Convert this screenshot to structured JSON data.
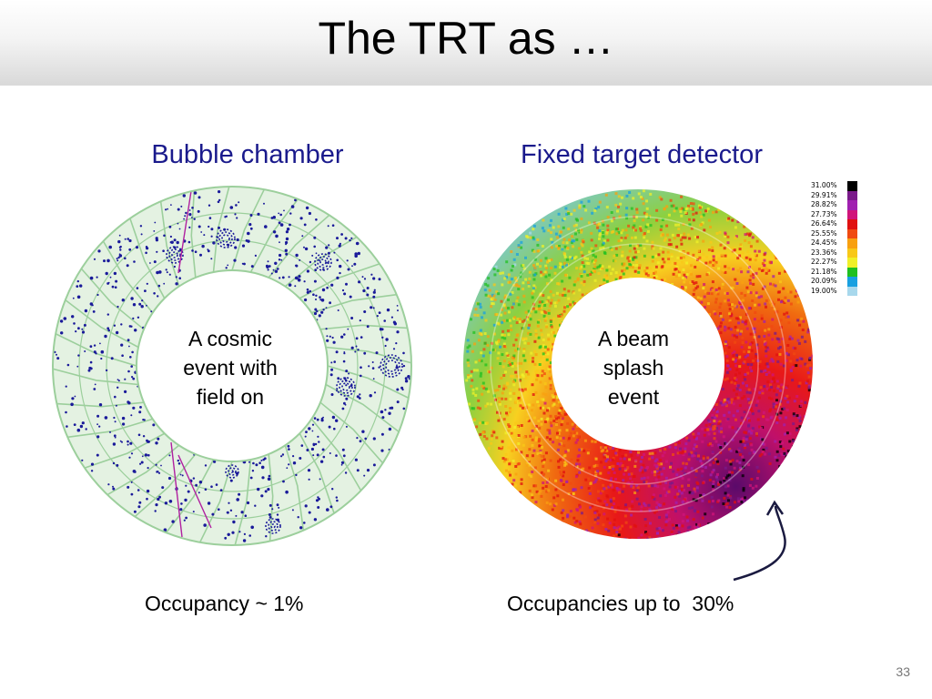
{
  "slide": {
    "title": "The TRT as …",
    "page_number": "33"
  },
  "left_panel": {
    "heading": "Bubble chamber",
    "center_label": "A cosmic\nevent with\nfield on",
    "caption": "Occupancy ~ 1%"
  },
  "right_panel": {
    "heading": "Fixed target detector",
    "center_label": "A beam\nsplash\nevent",
    "caption": "Occupancies up to  30%"
  },
  "legend": [
    {
      "label": "31.00%",
      "color": "#000000"
    },
    {
      "label": "29.91%",
      "color": "#7a1a8a"
    },
    {
      "label": "28.82%",
      "color": "#a020b0"
    },
    {
      "label": "27.73%",
      "color": "#d0147a"
    },
    {
      "label": "26.64%",
      "color": "#e01010"
    },
    {
      "label": "25.55%",
      "color": "#f04a10"
    },
    {
      "label": "24.45%",
      "color": "#f8a010"
    },
    {
      "label": "23.36%",
      "color": "#f8c818"
    },
    {
      "label": "22.27%",
      "color": "#f0f028"
    },
    {
      "label": "21.18%",
      "color": "#20c020"
    },
    {
      "label": "20.09%",
      "color": "#18a0e0"
    },
    {
      "label": "19.00%",
      "color": "#a8d8ec"
    }
  ],
  "colors": {
    "heading": "#1a1a8c",
    "left_ring": "#dff0dd",
    "left_grid": "#9ccf9c",
    "left_hits": "#1a1a9a",
    "left_tracks": "#b020a0"
  }
}
